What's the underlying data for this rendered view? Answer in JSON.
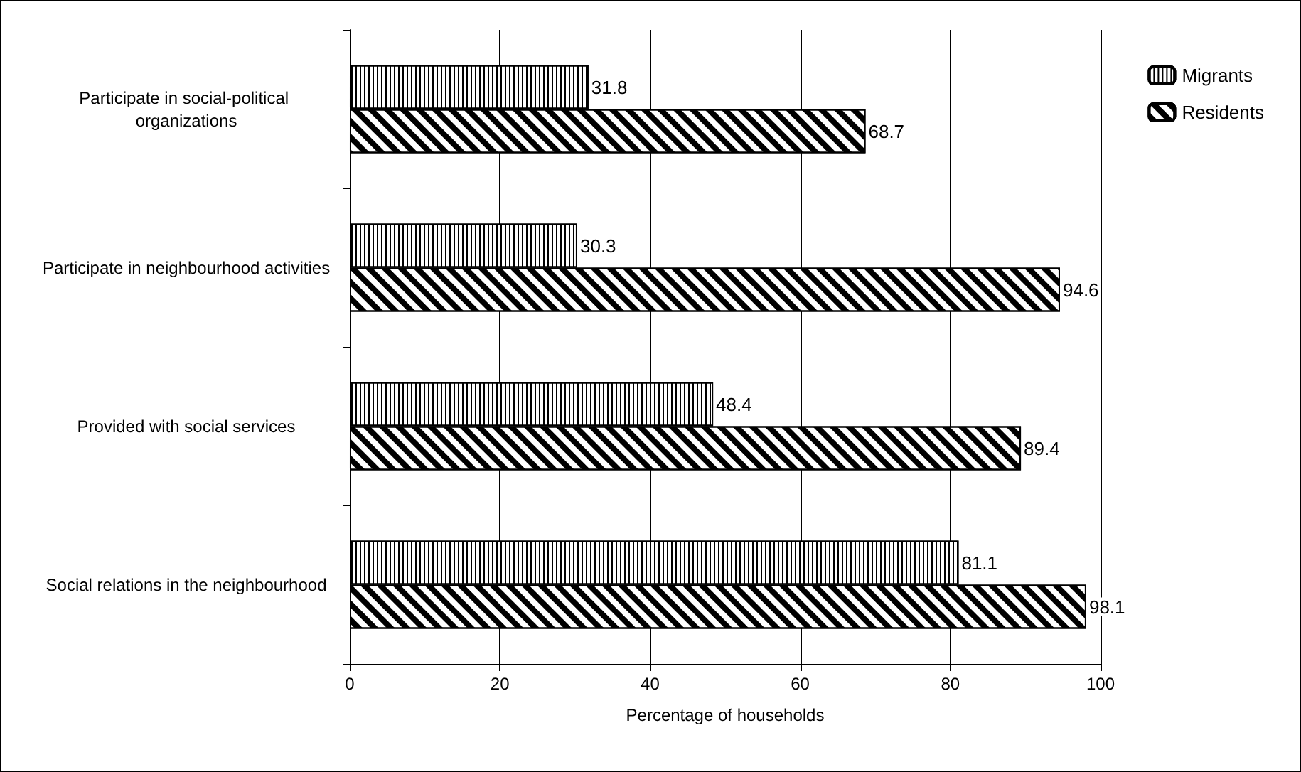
{
  "chart_data": {
    "type": "bar",
    "orientation": "horizontal",
    "xlabel": "Percentage of households",
    "categories": [
      "Participate in social-political organizations",
      "Participate in neighbourhood activities",
      "Provided with social services",
      "Social relations in the neighbourhood"
    ],
    "series": [
      {
        "name": "Migrants",
        "color": "#000000",
        "values": [
          31.8,
          30.3,
          48.4,
          81.1
        ]
      },
      {
        "name": "Residents",
        "color": "#000000",
        "values": [
          68.7,
          94.6,
          89.4,
          98.1
        ]
      }
    ],
    "xlim": [
      0,
      100
    ],
    "xticks": [
      0,
      20,
      40,
      60,
      80,
      100
    ],
    "grid": "x",
    "legend": "top right",
    "data_labels": true
  }
}
